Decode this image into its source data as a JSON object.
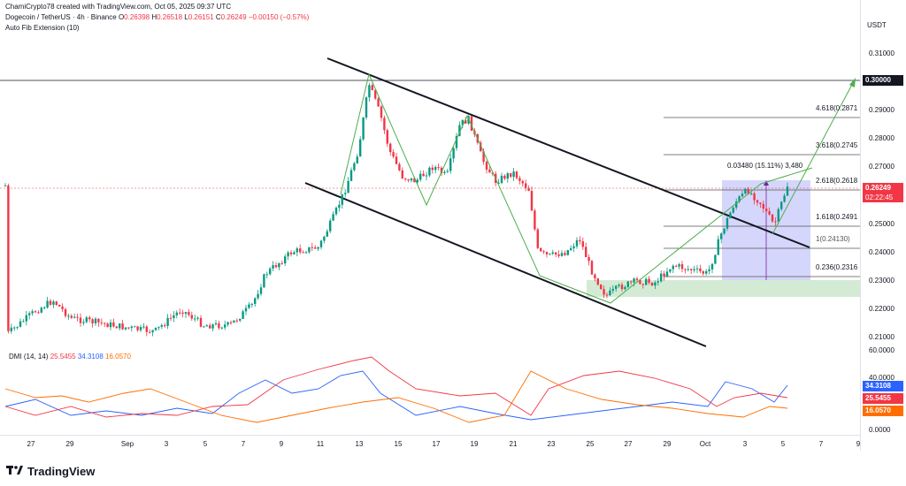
{
  "header": {
    "credit": "ChamiCrypto78 created with TradingView.com, Oct 05, 2025 09:37 UTC",
    "symbol": "Dogecoin / TetherUS · 4h · Binance",
    "o_label": "O",
    "o_value": "0.26398",
    "h_label": "H",
    "h_value": "0.26518",
    "l_label": "L",
    "l_value": "0.26151",
    "c_label": "C",
    "c_value": "0.26249",
    "change": "−0.00150 (−0.57%)",
    "indicator": "Auto Fib Extension (10)"
  },
  "axis": {
    "currency": "USDT",
    "price_ticks": [
      "0.31000",
      "0.29000",
      "0.28000",
      "0.27000",
      "0.25000",
      "0.24000",
      "0.23000",
      "0.22000",
      "0.21000",
      "0.20000"
    ],
    "time_ticks": [
      "27",
      "29",
      "Sep",
      "3",
      "5",
      "7",
      "9",
      "11",
      "13",
      "15",
      "17",
      "19",
      "21",
      "23",
      "25",
      "27",
      "29",
      "Oct",
      "3",
      "5",
      "7",
      "9"
    ],
    "dmi_ticks": [
      "60.0000",
      "40.0000",
      "0.0000"
    ]
  },
  "badges": {
    "target": "0.30000",
    "last_price": "0.26249",
    "countdown": "02:22:45",
    "di_plus": "34.3108",
    "di_minus": "25.5455",
    "adx": "16.0570"
  },
  "fib_levels": {
    "l4618": "4.618(0.2871",
    "l3618": "3.618(0.2745",
    "l2618": "2.618(0.2618",
    "l1618": "1.618(0.2491",
    "l1": "1(0.24130)",
    "l0236": "0.236(0.2316"
  },
  "measure": "0.03480 (15.11%) 3,480",
  "dmi": {
    "title": "DMI (14, 14)",
    "v1": "25.5455",
    "v2": "34.3108",
    "v3": "16.0570"
  },
  "brand": "TradingView",
  "colors": {
    "up": "#089981",
    "down": "#f23645",
    "di_plus": "#2962ff",
    "di_minus": "#f23645",
    "adx": "#ff6d00",
    "fib_zone": "#b2b5f8",
    "demand_zone": "#c8e6c9",
    "trend": "#4caf50"
  }
}
